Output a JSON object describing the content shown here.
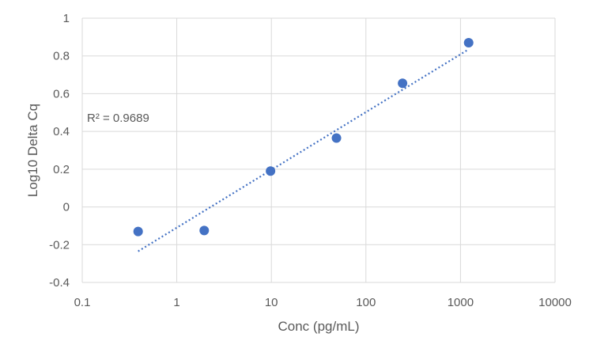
{
  "chart_data": {
    "type": "scatter",
    "title": "",
    "xlabel": "Conc (pg/mL)",
    "ylabel": "Log10 Delta Cq",
    "x_scale": "log",
    "xlim": [
      0.1,
      10000
    ],
    "ylim": [
      -0.4,
      1
    ],
    "x_ticks": [
      0.1,
      1,
      10,
      100,
      1000,
      10000
    ],
    "x_tick_labels": [
      "0.1",
      "1",
      "10",
      "100",
      "1000",
      "10000"
    ],
    "y_ticks": [
      -0.4,
      -0.2,
      0,
      0.2,
      0.4,
      0.6,
      0.8,
      1
    ],
    "y_tick_labels": [
      "-0.4",
      "-0.2",
      "0",
      "0.2",
      "0.4",
      "0.6",
      "0.8",
      "1"
    ],
    "grid": true,
    "legend": "none",
    "series": [
      {
        "color": "#4472C4",
        "points": [
          {
            "x": 0.39,
            "y": -0.13
          },
          {
            "x": 1.95,
            "y": -0.125
          },
          {
            "x": 9.8,
            "y": 0.19
          },
          {
            "x": 48.8,
            "y": 0.365
          },
          {
            "x": 244,
            "y": 0.655
          },
          {
            "x": 1220,
            "y": 0.87
          }
        ]
      }
    ],
    "trendline": {
      "type": "logarithmic",
      "style": "dotted",
      "color": "#4472C4",
      "from": {
        "x": 0.39,
        "y": -0.235
      },
      "to": {
        "x": 1220,
        "y": 0.835
      }
    },
    "annotation": "R² = 0.9689"
  }
}
